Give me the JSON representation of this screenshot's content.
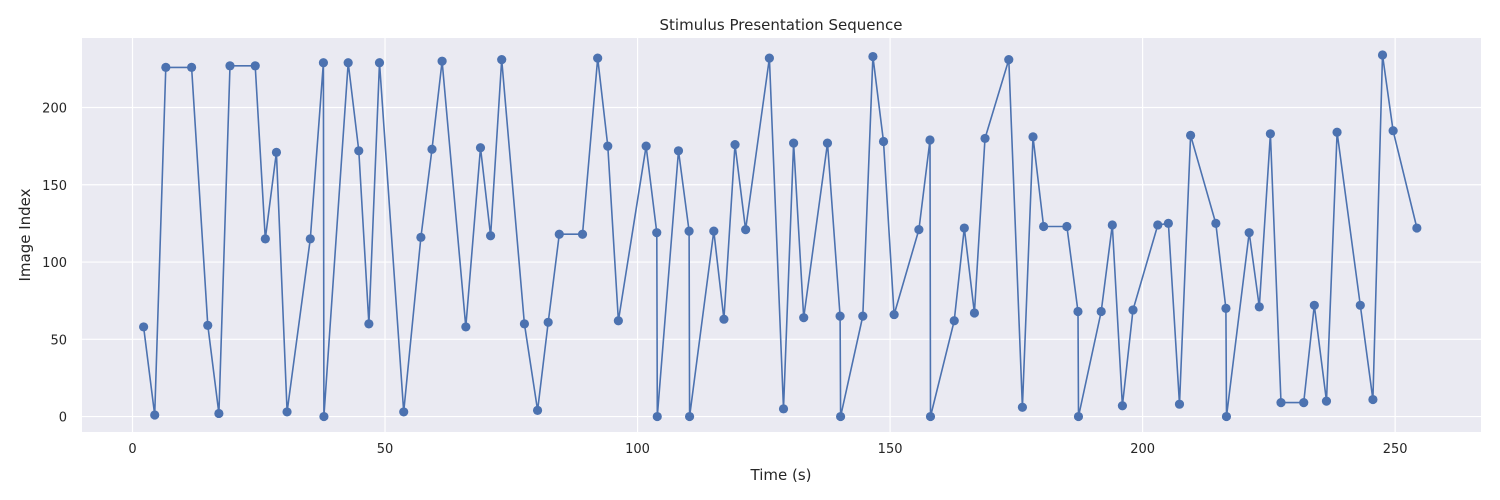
{
  "chart_data": {
    "type": "line",
    "title": "Stimulus Presentation Sequence",
    "xlabel": "Time (s)",
    "ylabel": "Image Index",
    "xlim": [
      -10,
      267
    ],
    "ylim": [
      -10,
      245
    ],
    "xticks": [
      0,
      50,
      100,
      150,
      200,
      250
    ],
    "yticks": [
      0,
      50,
      100,
      150,
      200
    ],
    "grid": true,
    "colors": {
      "series": "#4c72b0",
      "plot_bg": "#eaeaf2",
      "grid": "#ffffff"
    },
    "series": [
      {
        "x": [
          2.2,
          4.4,
          6.6,
          11.7,
          14.9,
          17.1,
          19.3,
          24.3,
          26.3,
          28.5,
          30.6,
          35.2,
          37.8,
          37.9,
          42.7,
          44.8,
          46.8,
          48.9,
          53.7,
          57.1,
          59.3,
          61.3,
          66.0,
          68.9,
          70.9,
          73.1,
          77.6,
          80.2,
          82.3,
          84.5,
          89.1,
          92.1,
          94.1,
          96.2,
          101.7,
          103.8,
          103.9,
          108.1,
          110.2,
          110.3,
          115.1,
          117.1,
          119.3,
          121.4,
          126.1,
          128.9,
          130.9,
          132.9,
          137.6,
          140.1,
          140.2,
          144.6,
          146.6,
          148.7,
          150.8,
          155.7,
          157.9,
          158.0,
          162.7,
          164.7,
          166.7,
          168.8,
          173.5,
          176.2,
          178.3,
          180.4,
          185.0,
          187.2,
          187.3,
          191.8,
          194.0,
          196.0,
          198.1,
          203.0,
          205.1,
          207.3,
          209.5,
          214.5,
          216.5,
          216.6,
          221.1,
          223.1,
          225.3,
          227.4,
          231.9,
          234.0,
          236.4,
          238.5,
          243.1,
          245.6,
          247.5,
          249.6,
          254.3
        ],
        "y": [
          58,
          1,
          226,
          226,
          59,
          2,
          227,
          227,
          115,
          171,
          3,
          115,
          229,
          0,
          229,
          172,
          60,
          229,
          3,
          116,
          173,
          230,
          58,
          174,
          117,
          231,
          60,
          4,
          61,
          118,
          118,
          232,
          175,
          62,
          175,
          119,
          0,
          172,
          120,
          0,
          120,
          63,
          176,
          121,
          232,
          5,
          177,
          64,
          177,
          65,
          0,
          65,
          233,
          178,
          66,
          121,
          179,
          0,
          62,
          122,
          67,
          180,
          231,
          6,
          181,
          123,
          123,
          68,
          0,
          68,
          124,
          7,
          69,
          124,
          125,
          8,
          182,
          125,
          70,
          0,
          119,
          71,
          183,
          9,
          9,
          72,
          10,
          184,
          72,
          11,
          234,
          185,
          122
        ]
      }
    ]
  }
}
